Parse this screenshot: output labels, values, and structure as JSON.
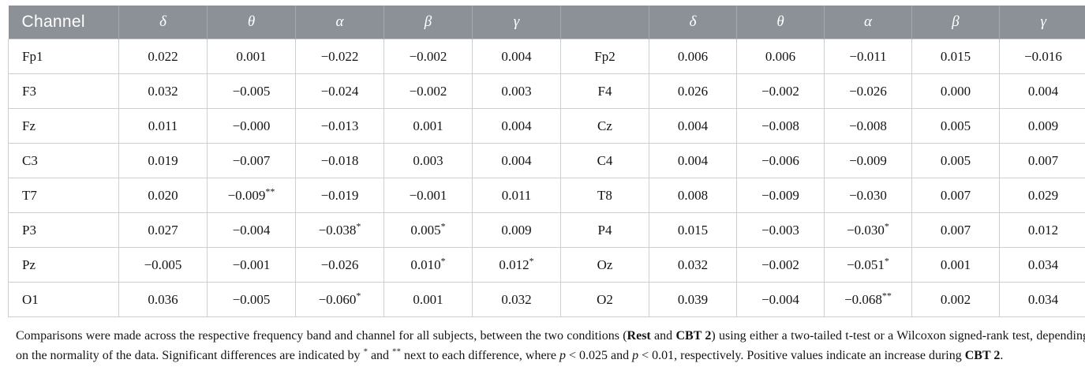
{
  "colors": {
    "header_bg": "#8b9196",
    "header_divider": "#a4a9ad",
    "border": "#cccfd1",
    "text": "#141414",
    "header_text": "#ffffff"
  },
  "table": {
    "header": {
      "channel_label": "Channel",
      "bands": [
        "δ",
        "θ",
        "α",
        "β",
        "γ"
      ]
    },
    "rows": [
      {
        "left_channel": "Fp1",
        "left_values": [
          "0.022",
          "0.001",
          "−0.022",
          "−0.002",
          "0.004"
        ],
        "right_channel": "Fp2",
        "right_values": [
          "0.006",
          "0.006",
          "−0.011",
          "0.015",
          "−0.016"
        ]
      },
      {
        "left_channel": "F3",
        "left_values": [
          "0.032",
          "−0.005",
          "−0.024",
          "−0.002",
          "0.003"
        ],
        "right_channel": "F4",
        "right_values": [
          "0.026",
          "−0.002",
          "−0.026",
          "0.000",
          "0.004"
        ]
      },
      {
        "left_channel": "Fz",
        "left_values": [
          "0.011",
          "−0.000",
          "−0.013",
          "0.001",
          "0.004"
        ],
        "right_channel": "Cz",
        "right_values": [
          "0.004",
          "−0.008",
          "−0.008",
          "0.005",
          "0.009"
        ]
      },
      {
        "left_channel": "C3",
        "left_values": [
          "0.019",
          "−0.007",
          "−0.018",
          "0.003",
          "0.004"
        ],
        "right_channel": "C4",
        "right_values": [
          "0.004",
          "−0.006",
          "−0.009",
          "0.005",
          "0.007"
        ]
      },
      {
        "left_channel": "T7",
        "left_values": [
          "0.020",
          "−0.009**",
          "−0.019",
          "−0.001",
          "0.011"
        ],
        "right_channel": "T8",
        "right_values": [
          "0.008",
          "−0.009",
          "−0.030",
          "0.007",
          "0.029"
        ]
      },
      {
        "left_channel": "P3",
        "left_values": [
          "0.027",
          "−0.004",
          "−0.038*",
          "0.005*",
          "0.009"
        ],
        "right_channel": "P4",
        "right_values": [
          "0.015",
          "−0.003",
          "−0.030*",
          "0.007",
          "0.012"
        ]
      },
      {
        "left_channel": "Pz",
        "left_values": [
          "−0.005",
          "−0.001",
          "−0.026",
          "0.010*",
          "0.012*"
        ],
        "right_channel": "Oz",
        "right_values": [
          "0.032",
          "−0.002",
          "−0.051*",
          "0.001",
          "0.034"
        ]
      },
      {
        "left_channel": "O1",
        "left_values": [
          "0.036",
          "−0.005",
          "−0.060*",
          "0.001",
          "0.032"
        ],
        "right_channel": "O2",
        "right_values": [
          "0.039",
          "−0.004",
          "−0.068**",
          "0.002",
          "0.034"
        ]
      }
    ]
  },
  "footnote": {
    "segments": [
      {
        "t": "Comparisons were made across the respective frequency band and channel for all subjects, between the two conditions ("
      },
      {
        "t": "Rest",
        "b": true
      },
      {
        "t": " and "
      },
      {
        "t": "CBT 2",
        "b": true
      },
      {
        "t": ") using either a two-tailed t-test or a Wilcoxon signed-rank test, depending on the normality of the data. Significant differences are indicated by "
      },
      {
        "t": "*",
        "sup": true
      },
      {
        "t": " and "
      },
      {
        "t": "**",
        "sup": true
      },
      {
        "t": " next to each difference, where "
      },
      {
        "t": "p",
        "i": true
      },
      {
        "t": " < 0.025 and "
      },
      {
        "t": "p",
        "i": true
      },
      {
        "t": " < 0.01, respectively. Positive values indicate an increase during "
      },
      {
        "t": "CBT 2",
        "b": true
      },
      {
        "t": "."
      }
    ]
  }
}
